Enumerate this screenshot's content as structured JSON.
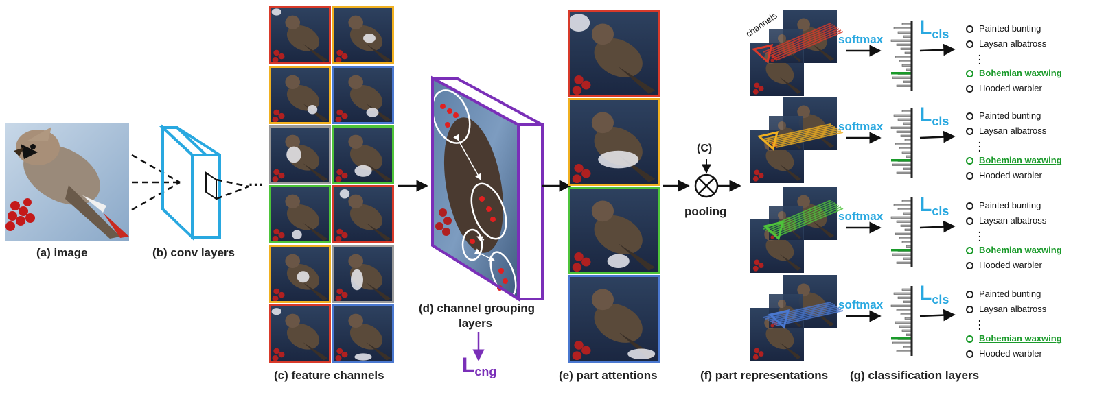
{
  "labels": {
    "image": "(a) image",
    "conv": "(b) conv layers",
    "feature": "(c) feature channels",
    "grouping_line1": "(d) channel grouping",
    "grouping_line2": "layers",
    "attentions": "(e) part attentions",
    "representations": "(f) part representations",
    "classification": "(g) classification layers",
    "pooling": "pooling",
    "concat": "(C)",
    "channels": "channels",
    "softmax": "softmax",
    "lcls_main": "L",
    "lcls_sub": "cls",
    "lcng_main": "L",
    "lcng_sub": "cng"
  },
  "classes": [
    "Painted bunting",
    "Laysan albatross",
    "Bohemian waxwing",
    "Hooded warbler"
  ],
  "highlighted_class": "Bohemian waxwing",
  "colors": {
    "red": "#d83a2a",
    "yellow": "#f0b020",
    "blue": "#4a78d0",
    "green": "#4ec43a",
    "gray": "#9a9a9a",
    "cyan": "#29a8e0",
    "purple": "#7a2fb8",
    "highlight": "#1a9a2a"
  },
  "feature_channel_colors": [
    [
      "red",
      "yellow"
    ],
    [
      "yellow",
      "blue"
    ],
    [
      "gray",
      "green"
    ],
    [
      "green",
      "red"
    ],
    [
      "yellow",
      "gray"
    ],
    [
      "red",
      "blue"
    ]
  ],
  "part_attention_colors": [
    "red",
    "yellow",
    "green",
    "blue"
  ],
  "part_representation_colors": [
    "red",
    "yellow",
    "green",
    "blue"
  ]
}
